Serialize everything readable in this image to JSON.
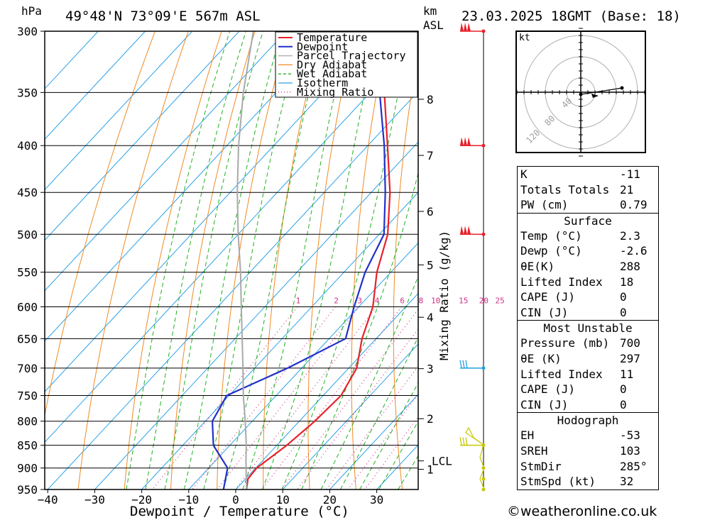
{
  "header": {
    "pressure_unit": "hPa",
    "location": "49°48'N 73°09'E 567m ASL",
    "height_unit": "km",
    "height_unit2": "ASL",
    "datetime": "23.03.2025 18GMT (Base: 18)"
  },
  "chart_data": {
    "type": "skew-t",
    "xlabel": "Dewpoint / Temperature (°C)",
    "ylabel": "hPa",
    "mixing_ratio_label": "Mixing Ratio (g/kg)",
    "pressure_ticks": [
      300,
      350,
      400,
      450,
      500,
      550,
      600,
      650,
      700,
      750,
      800,
      850,
      900,
      950
    ],
    "temperature_ticks": [
      -40,
      -30,
      -20,
      -10,
      0,
      10,
      20,
      30
    ],
    "height_ticks": [
      {
        "label": "8",
        "pressure": 356
      },
      {
        "label": "7",
        "pressure": 410
      },
      {
        "label": "6",
        "pressure": 472
      },
      {
        "label": "5",
        "pressure": 540
      },
      {
        "label": "4",
        "pressure": 616
      },
      {
        "label": "3",
        "pressure": 701
      },
      {
        "label": "2",
        "pressure": 795
      },
      {
        "label": "1",
        "pressure": 903
      }
    ],
    "lcl": {
      "label": "LCL",
      "pressure": 884
    },
    "mixing_ratio_values": [
      "1",
      "2",
      "3",
      "4",
      "6",
      "8",
      "10",
      "15",
      "20",
      "25"
    ],
    "legend": [
      "Temperature",
      "Dewpoint",
      "Parcel Trajectory",
      "Dry Adiabat",
      "Wet Adiabat",
      "Isotherm",
      "Mixing Ratio"
    ],
    "series": [
      {
        "name": "Temperature",
        "color": "#e8202a",
        "points": [
          [
            950,
            2.3
          ],
          [
            925,
            0.5
          ],
          [
            900,
            0.2
          ],
          [
            850,
            2.1
          ],
          [
            800,
            3.3
          ],
          [
            750,
            3.8
          ],
          [
            700,
            1.7
          ],
          [
            650,
            -3.0
          ],
          [
            600,
            -7.0
          ],
          [
            550,
            -13.0
          ],
          [
            500,
            -18.2
          ],
          [
            450,
            -26.0
          ],
          [
            400,
            -35.8
          ],
          [
            350,
            -47.0
          ],
          [
            300,
            -58.0
          ]
        ]
      },
      {
        "name": "Dewpoint",
        "color": "#2230c8",
        "points": [
          [
            950,
            -2.6
          ],
          [
            900,
            -6.0
          ],
          [
            850,
            -13.5
          ],
          [
            800,
            -18.5
          ],
          [
            750,
            -20.5
          ],
          [
            700,
            -13.0
          ],
          [
            650,
            -6.5
          ],
          [
            600,
            -11.0
          ],
          [
            550,
            -15.5
          ],
          [
            500,
            -19.0
          ],
          [
            450,
            -27.0
          ],
          [
            400,
            -36.5
          ],
          [
            350,
            -48.0
          ],
          [
            300,
            -59.0
          ]
        ]
      },
      {
        "name": "Parcel Trajectory",
        "color": "#a9a9a9",
        "points": [
          [
            950,
            2.3
          ],
          [
            884,
            -3.5
          ],
          [
            850,
            -6.5
          ],
          [
            800,
            -11.5
          ],
          [
            750,
            -17.0
          ],
          [
            700,
            -22.5
          ],
          [
            650,
            -28.5
          ],
          [
            600,
            -35.0
          ],
          [
            550,
            -42.0
          ],
          [
            500,
            -50.0
          ],
          [
            450,
            -58.5
          ],
          [
            400,
            -67.5
          ],
          [
            350,
            -77.0
          ],
          [
            300,
            -87.0
          ]
        ]
      }
    ]
  },
  "wind_barbs": [
    {
      "pressure": 300,
      "color": "#e8202a"
    },
    {
      "pressure": 400,
      "color": "#e8202a"
    },
    {
      "pressure": 500,
      "color": "#e8202a"
    },
    {
      "pressure": 700,
      "color": "#22a0e0"
    },
    {
      "pressure": 850,
      "color": "#c8c800"
    }
  ],
  "hodograph": {
    "unit": "kt",
    "ring_labels": [
      "40",
      "80",
      "120"
    ]
  },
  "indices": {
    "general": [
      {
        "label": "K",
        "value": "-11"
      },
      {
        "label": "Totals Totals",
        "value": "21"
      },
      {
        "label": "PW (cm)",
        "value": "0.79"
      }
    ],
    "surface": {
      "title": "Surface",
      "rows": [
        {
          "label": "Temp (°C)",
          "value": "2.3"
        },
        {
          "label": "Dewp (°C)",
          "value": "-2.6"
        },
        {
          "label": "θE(K)",
          "value": "288"
        },
        {
          "label": "Lifted Index",
          "value": "18"
        },
        {
          "label": "CAPE (J)",
          "value": "0"
        },
        {
          "label": "CIN (J)",
          "value": "0"
        }
      ]
    },
    "most_unstable": {
      "title": "Most Unstable",
      "rows": [
        {
          "label": "Pressure (mb)",
          "value": "700"
        },
        {
          "label": "θE (K)",
          "value": "297"
        },
        {
          "label": "Lifted Index",
          "value": "11"
        },
        {
          "label": "CAPE (J)",
          "value": "0"
        },
        {
          "label": "CIN (J)",
          "value": "0"
        }
      ]
    },
    "hodograph": {
      "title": "Hodograph",
      "rows": [
        {
          "label": "EH",
          "value": "-53"
        },
        {
          "label": "SREH",
          "value": "103"
        },
        {
          "label": "StmDir",
          "value": "285°"
        },
        {
          "label": "StmSpd (kt)",
          "value": "32"
        }
      ]
    }
  },
  "footer": "©weatheronline.co.uk"
}
